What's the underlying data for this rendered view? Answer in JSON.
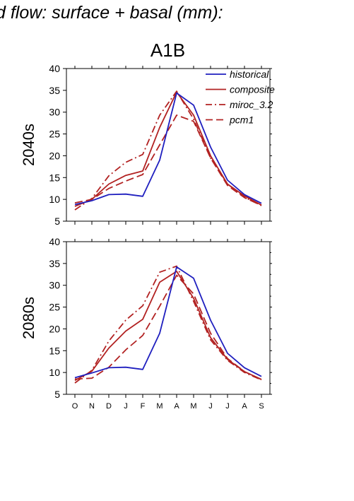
{
  "title": "d flow: surface + basal (mm):",
  "scenario": "A1B",
  "legend": [
    {
      "label": "historical",
      "color": "#1f1fbf",
      "dash": "solid"
    },
    {
      "label": "composite",
      "color": "#b22222",
      "dash": "solid"
    },
    {
      "label": "miroc_3.2",
      "color": "#b22222",
      "dash": "dashdot"
    },
    {
      "label": "pcm1",
      "color": "#b22222",
      "dash": "dashed"
    }
  ],
  "chart_data": [
    {
      "type": "line",
      "ylabel": "2040s",
      "ylim": [
        5,
        40
      ],
      "yticks": [
        5,
        10,
        15,
        20,
        25,
        30,
        35,
        40
      ],
      "categories": [
        "O",
        "N",
        "D",
        "J",
        "F",
        "M",
        "A",
        "M",
        "J",
        "J",
        "A",
        "S"
      ],
      "series": [
        {
          "name": "historical",
          "values": [
            8.8,
            9.7,
            11.1,
            11.2,
            10.7,
            19,
            34.4,
            31.6,
            22,
            14.4,
            11.1,
            9.1
          ]
        },
        {
          "name": "composite",
          "values": [
            8.4,
            10,
            13.5,
            15.5,
            16.5,
            26.5,
            34.6,
            29.3,
            20,
            13.5,
            10.8,
            8.7
          ]
        },
        {
          "name": "miroc_3.2",
          "values": [
            7.6,
            10.2,
            15.4,
            18.5,
            20.3,
            29.3,
            34.8,
            28.4,
            19.5,
            13.5,
            10.5,
            8.6
          ]
        },
        {
          "name": "pcm1",
          "values": [
            9.2,
            10,
            12.5,
            14.2,
            15.7,
            22.5,
            29.3,
            27.9,
            19.5,
            13.2,
            10.4,
            8.6
          ]
        }
      ]
    },
    {
      "type": "line",
      "ylabel": "2080s",
      "ylim": [
        5,
        40
      ],
      "yticks": [
        5,
        10,
        15,
        20,
        25,
        30,
        35,
        40
      ],
      "categories": [
        "O",
        "N",
        "D",
        "J",
        "F",
        "M",
        "A",
        "M",
        "J",
        "J",
        "A",
        "S"
      ],
      "series": [
        {
          "name": "historical",
          "values": [
            8.8,
            9.9,
            11.1,
            11.2,
            10.7,
            19,
            34.2,
            31.6,
            22,
            14.4,
            11.1,
            9.1
          ]
        },
        {
          "name": "composite",
          "values": [
            8.2,
            10.3,
            15.6,
            19.5,
            22.2,
            30.7,
            33.2,
            27,
            18,
            13,
            10.2,
            8.4
          ]
        },
        {
          "name": "miroc_3.2",
          "values": [
            7.6,
            10.5,
            17.2,
            22,
            25.3,
            33,
            34.4,
            26.3,
            17.5,
            12.8,
            10,
            8.3
          ]
        },
        {
          "name": "pcm1",
          "values": [
            8.5,
            8.7,
            11.2,
            15.2,
            18.5,
            25.2,
            32.3,
            28,
            19,
            13.2,
            10.2,
            8.4
          ]
        }
      ]
    }
  ]
}
